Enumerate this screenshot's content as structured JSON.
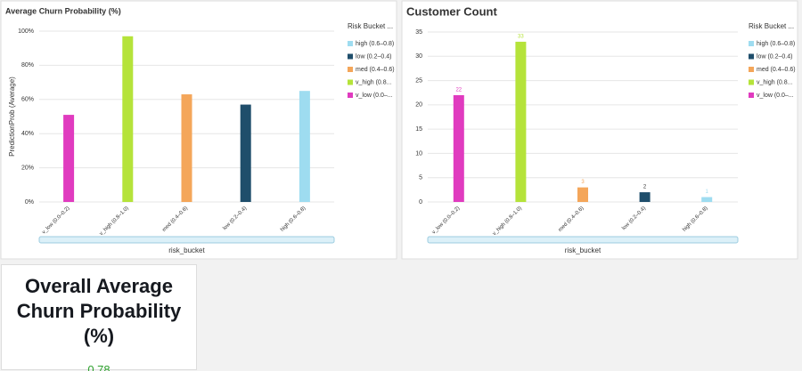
{
  "chart_data": [
    {
      "type": "bar",
      "title": "Average Churn Probability (%)",
      "y_label": "PredictionProb (Average)",
      "x_label": "risk_bucket",
      "legend_title": "Risk Bucket ...",
      "categories": [
        "v_low (0.0–0.2)",
        "v_high (0.8–1.0)",
        "med (0.4–0.6)",
        "low (0.2–0.4)",
        "high (0.6–0.8)"
      ],
      "series": [
        {
          "name": "high (0.6–0.8)",
          "color": "#9edcf0",
          "values": [
            null,
            null,
            null,
            null,
            65
          ]
        },
        {
          "name": "low (0.2–0.4)",
          "color": "#1f4e6b",
          "values": [
            null,
            null,
            null,
            57,
            null
          ]
        },
        {
          "name": "med (0.4–0.6)",
          "color": "#f4a65a",
          "values": [
            null,
            null,
            63,
            null,
            null
          ]
        },
        {
          "name": "v_high (0.8...",
          "color": "#b5e33a",
          "values": [
            null,
            97,
            null,
            null,
            null
          ]
        },
        {
          "name": "v_low (0.0–...",
          "color": "#e03bbf",
          "values": [
            51,
            null,
            null,
            null,
            null
          ]
        }
      ],
      "ylim": [
        0,
        100
      ],
      "yticks": [
        {
          "value": 0,
          "label": "0%"
        },
        {
          "value": 20,
          "label": "20%"
        },
        {
          "value": 40,
          "label": "40%"
        },
        {
          "value": 60,
          "label": "60%"
        },
        {
          "value": 80,
          "label": "80%"
        },
        {
          "value": 100,
          "label": "100%"
        }
      ],
      "grid": true,
      "data_labels": false
    },
    {
      "type": "bar",
      "title": "Customer Count",
      "x_label": "risk_bucket",
      "legend_title": "Risk Bucket ...",
      "categories": [
        "v_low (0.0–0.2)",
        "v_high (0.8–1.0)",
        "med (0.4–0.6)",
        "low (0.2–0.4)",
        "high (0.6–0.8)"
      ],
      "series": [
        {
          "name": "high (0.6–0.8)",
          "color": "#9edcf0",
          "values": [
            null,
            null,
            null,
            null,
            1
          ]
        },
        {
          "name": "low (0.2–0.4)",
          "color": "#1f4e6b",
          "values": [
            null,
            null,
            null,
            2,
            null
          ]
        },
        {
          "name": "med (0.4–0.6)",
          "color": "#f4a65a",
          "values": [
            null,
            null,
            3,
            null,
            null
          ]
        },
        {
          "name": "v_high (0.8...",
          "color": "#b5e33a",
          "values": [
            null,
            33,
            null,
            null,
            null
          ]
        },
        {
          "name": "v_low (0.0–...",
          "color": "#e03bbf",
          "values": [
            22,
            null,
            null,
            null,
            null
          ]
        }
      ],
      "ylim": [
        0,
        35
      ],
      "yticks": [
        0,
        5,
        10,
        15,
        20,
        25,
        30,
        35
      ],
      "grid": true,
      "data_labels": true
    }
  ],
  "kpi": {
    "title": "Overall Average Churn Probability (%)",
    "value": 0.78
  }
}
